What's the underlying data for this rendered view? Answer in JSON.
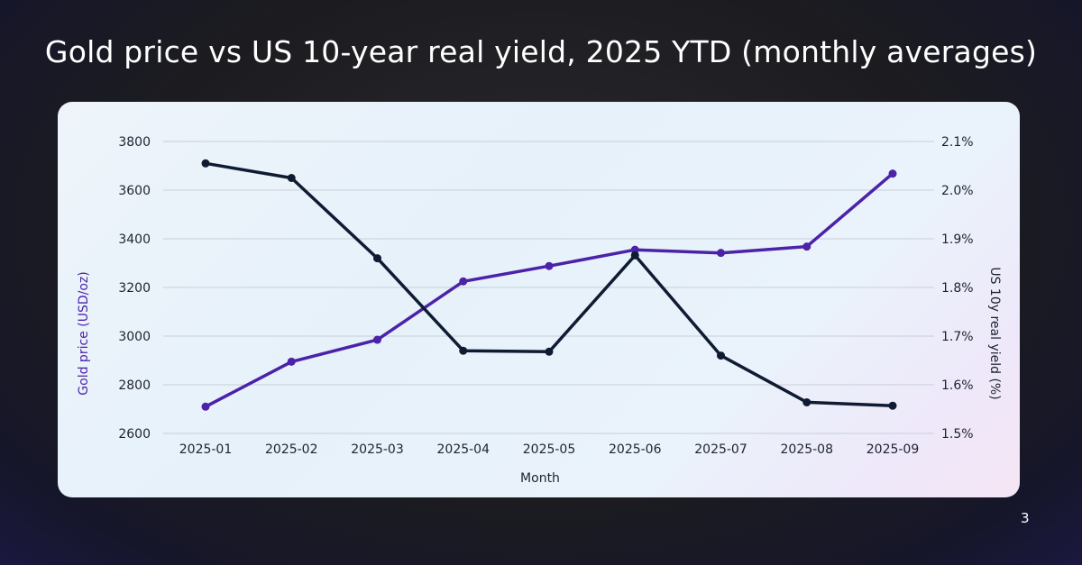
{
  "title": "Gold price vs US 10-year real yield, 2025 YTD (monthly averages)",
  "page_number": "3",
  "colors": {
    "gold_series": "#4b22a8",
    "yield_series": "#0f1b33",
    "gridline": "#c8ced8",
    "left_axis_label": "#4b22a8",
    "right_axis_label": "#1e2230"
  },
  "chart_data": {
    "type": "line",
    "xlabel": "Month",
    "ylabel_left": "Gold price (USD/oz)",
    "ylabel_right": "US 10y real yield (%)",
    "categories": [
      "2025-01",
      "2025-02",
      "2025-03",
      "2025-04",
      "2025-05",
      "2025-06",
      "2025-07",
      "2025-08",
      "2025-09"
    ],
    "y_left": {
      "lim": [
        2600,
        3800
      ],
      "ticks": [
        2600,
        2800,
        3000,
        3200,
        3400,
        3600,
        3800
      ],
      "tick_labels": [
        "2600",
        "2800",
        "3000",
        "3200",
        "3400",
        "3600",
        "3800"
      ]
    },
    "y_right": {
      "lim": [
        1.5,
        2.1
      ],
      "ticks": [
        1.5,
        1.6,
        1.7,
        1.8,
        1.9,
        2.0,
        2.1
      ],
      "tick_labels": [
        "1.5%",
        "1.6%",
        "1.7%",
        "1.8%",
        "1.9%",
        "2.0%",
        "2.1%"
      ]
    },
    "grid": true,
    "legend": "none",
    "series": [
      {
        "axis": "left",
        "color": "#4b22a8",
        "values": [
          2710,
          2895,
          2985,
          3225,
          3288,
          3355,
          3342,
          3368,
          3668
        ]
      },
      {
        "axis": "right",
        "color": "#0f1b33",
        "values": [
          2.055,
          2.025,
          1.86,
          1.67,
          1.668,
          1.866,
          1.66,
          1.564,
          1.557
        ]
      }
    ]
  }
}
